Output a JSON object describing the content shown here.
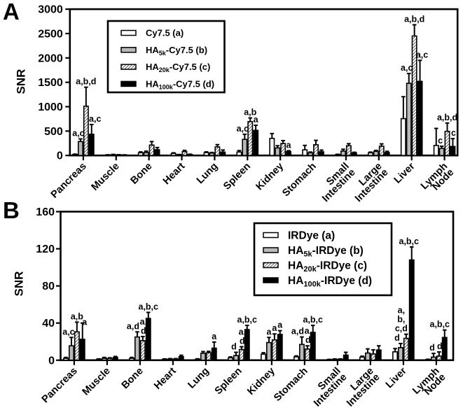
{
  "figure": {
    "background": "#ffffff"
  },
  "panels": [
    {
      "letter": "A"
    },
    {
      "letter": "B"
    }
  ],
  "colors": {
    "ink": "#000000",
    "bar_white": "#ffffff",
    "bar_gray": "#b9b9b9",
    "bar_black": "#000000"
  },
  "chart_data": [
    {
      "type": "bar",
      "panel": "A",
      "ylabel": "SNR",
      "xlabel": "",
      "ylim": [
        0,
        3000
      ],
      "yticks": [
        0,
        500,
        1000,
        1500,
        2000,
        2500,
        3000
      ],
      "grid": false,
      "legend_position": "upper-left-inset",
      "categories": [
        "Pancreas",
        "Muscle",
        "Bone",
        "Heart",
        "Lung",
        "Spleen",
        "Kidney",
        "Stomach",
        "Small\nIntestine",
        "Large\nIntestine",
        "Liver",
        "Lymph\nNode"
      ],
      "series": [
        {
          "name": "Cy7.5 (a)",
          "label": {
            "pre": "Cy7.5 (a)",
            "sub": "",
            "post": ""
          },
          "fill": "white",
          "values": [
            20,
            10,
            55,
            42,
            58,
            70,
            350,
            115,
            18,
            54,
            755,
            205
          ],
          "errors": [
            8,
            4,
            18,
            12,
            16,
            30,
            100,
            92,
            6,
            15,
            450,
            350
          ],
          "annotations": [
            "",
            "",
            "",
            "",
            "",
            "",
            "",
            "",
            "",
            "",
            "",
            ""
          ]
        },
        {
          "name": "HA5k-Cy7.5 (b)",
          "label": {
            "pre": "HA",
            "sub": "5k",
            "post": "-Cy7.5 (b)"
          },
          "fill": "gray",
          "values": [
            285,
            16,
            62,
            15,
            50,
            330,
            155,
            55,
            90,
            84,
            1480,
            145
          ],
          "errors": [
            55,
            6,
            26,
            5,
            12,
            105,
            45,
            15,
            38,
            20,
            200,
            45
          ],
          "annotations": [
            [
              "a,c",
              -3
            ],
            "",
            "",
            "",
            "",
            [
              "a,c",
              -3
            ],
            "",
            "",
            "",
            "",
            [
              "a,c",
              -3
            ],
            [
              "c",
              -2
            ]
          ]
        },
        {
          "name": "HA20k-Cy7.5 (c)",
          "label": {
            "pre": "HA",
            "sub": "20k",
            "post": "-Cy7.5 (c)"
          },
          "fill": "hatch",
          "values": [
            1010,
            12,
            213,
            80,
            175,
            695,
            245,
            220,
            200,
            190,
            2450,
            495
          ],
          "errors": [
            390,
            4,
            72,
            25,
            47,
            75,
            60,
            90,
            42,
            48,
            230,
            170
          ],
          "annotations": [
            "a,b,d",
            "",
            "",
            "",
            "",
            "a,b",
            "",
            "",
            "",
            "",
            "a,b,d",
            "a,b,d"
          ]
        },
        {
          "name": "HA100k-Cy7.5 (d)",
          "label": {
            "pre": "HA",
            "sub": "100k",
            "post": "-Cy7.5 (d)"
          },
          "fill": "black",
          "values": [
            435,
            10,
            118,
            20,
            70,
            515,
            78,
            75,
            54,
            60,
            1520,
            185
          ],
          "errors": [
            200,
            3,
            45,
            6,
            42,
            105,
            20,
            35,
            12,
            25,
            430,
            160
          ],
          "annotations": [
            [
              "a,c",
              5
            ],
            "",
            "",
            "",
            "",
            "a",
            "a",
            "",
            "",
            "",
            [
              "a,c",
              3
            ],
            [
              "c",
              1
            ]
          ]
        }
      ]
    },
    {
      "type": "bar",
      "panel": "B",
      "ylabel": "SNR",
      "xlabel": "",
      "ylim": [
        0,
        160
      ],
      "yticks": [
        0,
        40,
        80,
        120,
        160
      ],
      "grid": false,
      "legend_position": "upper-center-inset",
      "categories": [
        "Pancreas",
        "Muscle",
        "Bone",
        "Heart",
        "Lung",
        "Spleen",
        "Kidney",
        "Stomach",
        "Small\nIntestine",
        "Large\nIntestine",
        "Liver",
        "Lymph\nNode"
      ],
      "series": [
        {
          "name": "IRDye (a)",
          "label": {
            "pre": "IRDye (a)",
            "sub": "",
            "post": ""
          },
          "fill": "white",
          "values": [
            2,
            1,
            2,
            1,
            1,
            2.5,
            6.5,
            3.6,
            0.6,
            3.3,
            9,
            0.7
          ],
          "errors": [
            1,
            0.4,
            1,
            0.4,
            0.5,
            1,
            1.5,
            1,
            0.3,
            1,
            3.5,
            0.3
          ],
          "annotations": [
            "",
            "",
            "",
            "",
            "",
            "",
            "",
            "",
            "",
            "",
            "",
            ""
          ]
        },
        {
          "name": "HA5k-IRDye (b)",
          "label": {
            "pre": "HA",
            "sub": "5k",
            "post": "-IRDye (b)"
          },
          "fill": "gray",
          "values": [
            15.5,
            2,
            25,
            1.2,
            7.5,
            5,
            19,
            17,
            1,
            7.7,
            13.5,
            3.3
          ],
          "errors": [
            9,
            1,
            5.5,
            0.5,
            1.8,
            3.5,
            5.5,
            8,
            0.4,
            4.5,
            4.5,
            4
          ],
          "annotations": [
            [
              "a,c",
              -4
            ],
            "",
            [
              "a,d",
              -6
            ],
            "",
            "",
            [
              "d",
              -3
            ],
            "a",
            [
              "a,d",
              -6
            ],
            "",
            "",
            [
              "d",
              -5
            ],
            [
              "d",
              -2
            ]
          ]
        },
        {
          "name": "HA20k-IRDye (c)",
          "label": {
            "pre": "HA",
            "sub": "20k",
            "post": "-IRDye (c)"
          },
          "fill": "hatch",
          "values": [
            30.5,
            1.8,
            21,
            1.2,
            8,
            11.5,
            21.8,
            12,
            1,
            6.7,
            23.5,
            4.4
          ],
          "errors": [
            10.5,
            0.8,
            4.5,
            0.5,
            1.5,
            3,
            6.5,
            3.5,
            0.4,
            4.5,
            4.5,
            4.5
          ],
          "annotations": [
            "a,b",
            "",
            [
              "a,\nd",
              1
            ],
            "",
            "",
            [
              "a,\nd",
              1
            ],
            "a",
            [
              "a,\nd",
              1
            ],
            "",
            "",
            [
              "a,\nb,\nc,d",
              -7
            ],
            [
              "d",
              1
            ]
          ]
        },
        {
          "name": "HA100k-IRDye (d)",
          "label": {
            "pre": "HA",
            "sub": "100k",
            "post": "-IRDye (d)"
          },
          "fill": "black",
          "values": [
            22.5,
            3,
            45,
            3.8,
            13,
            33,
            27.8,
            30,
            5.5,
            11,
            108,
            24.5
          ],
          "errors": [
            17.5,
            1,
            6.5,
            1.5,
            6.5,
            4.5,
            4,
            7.5,
            3,
            4.5,
            14,
            8
          ],
          "annotations": [
            [
              "a",
              3,
              7
            ],
            "",
            "a,b,c",
            "",
            "a",
            "a,b,c",
            "a",
            "a,b,c",
            "",
            "",
            [
              "a,b,c",
              -4
            ],
            [
              "a,b,c",
              -7
            ]
          ]
        }
      ]
    }
  ]
}
